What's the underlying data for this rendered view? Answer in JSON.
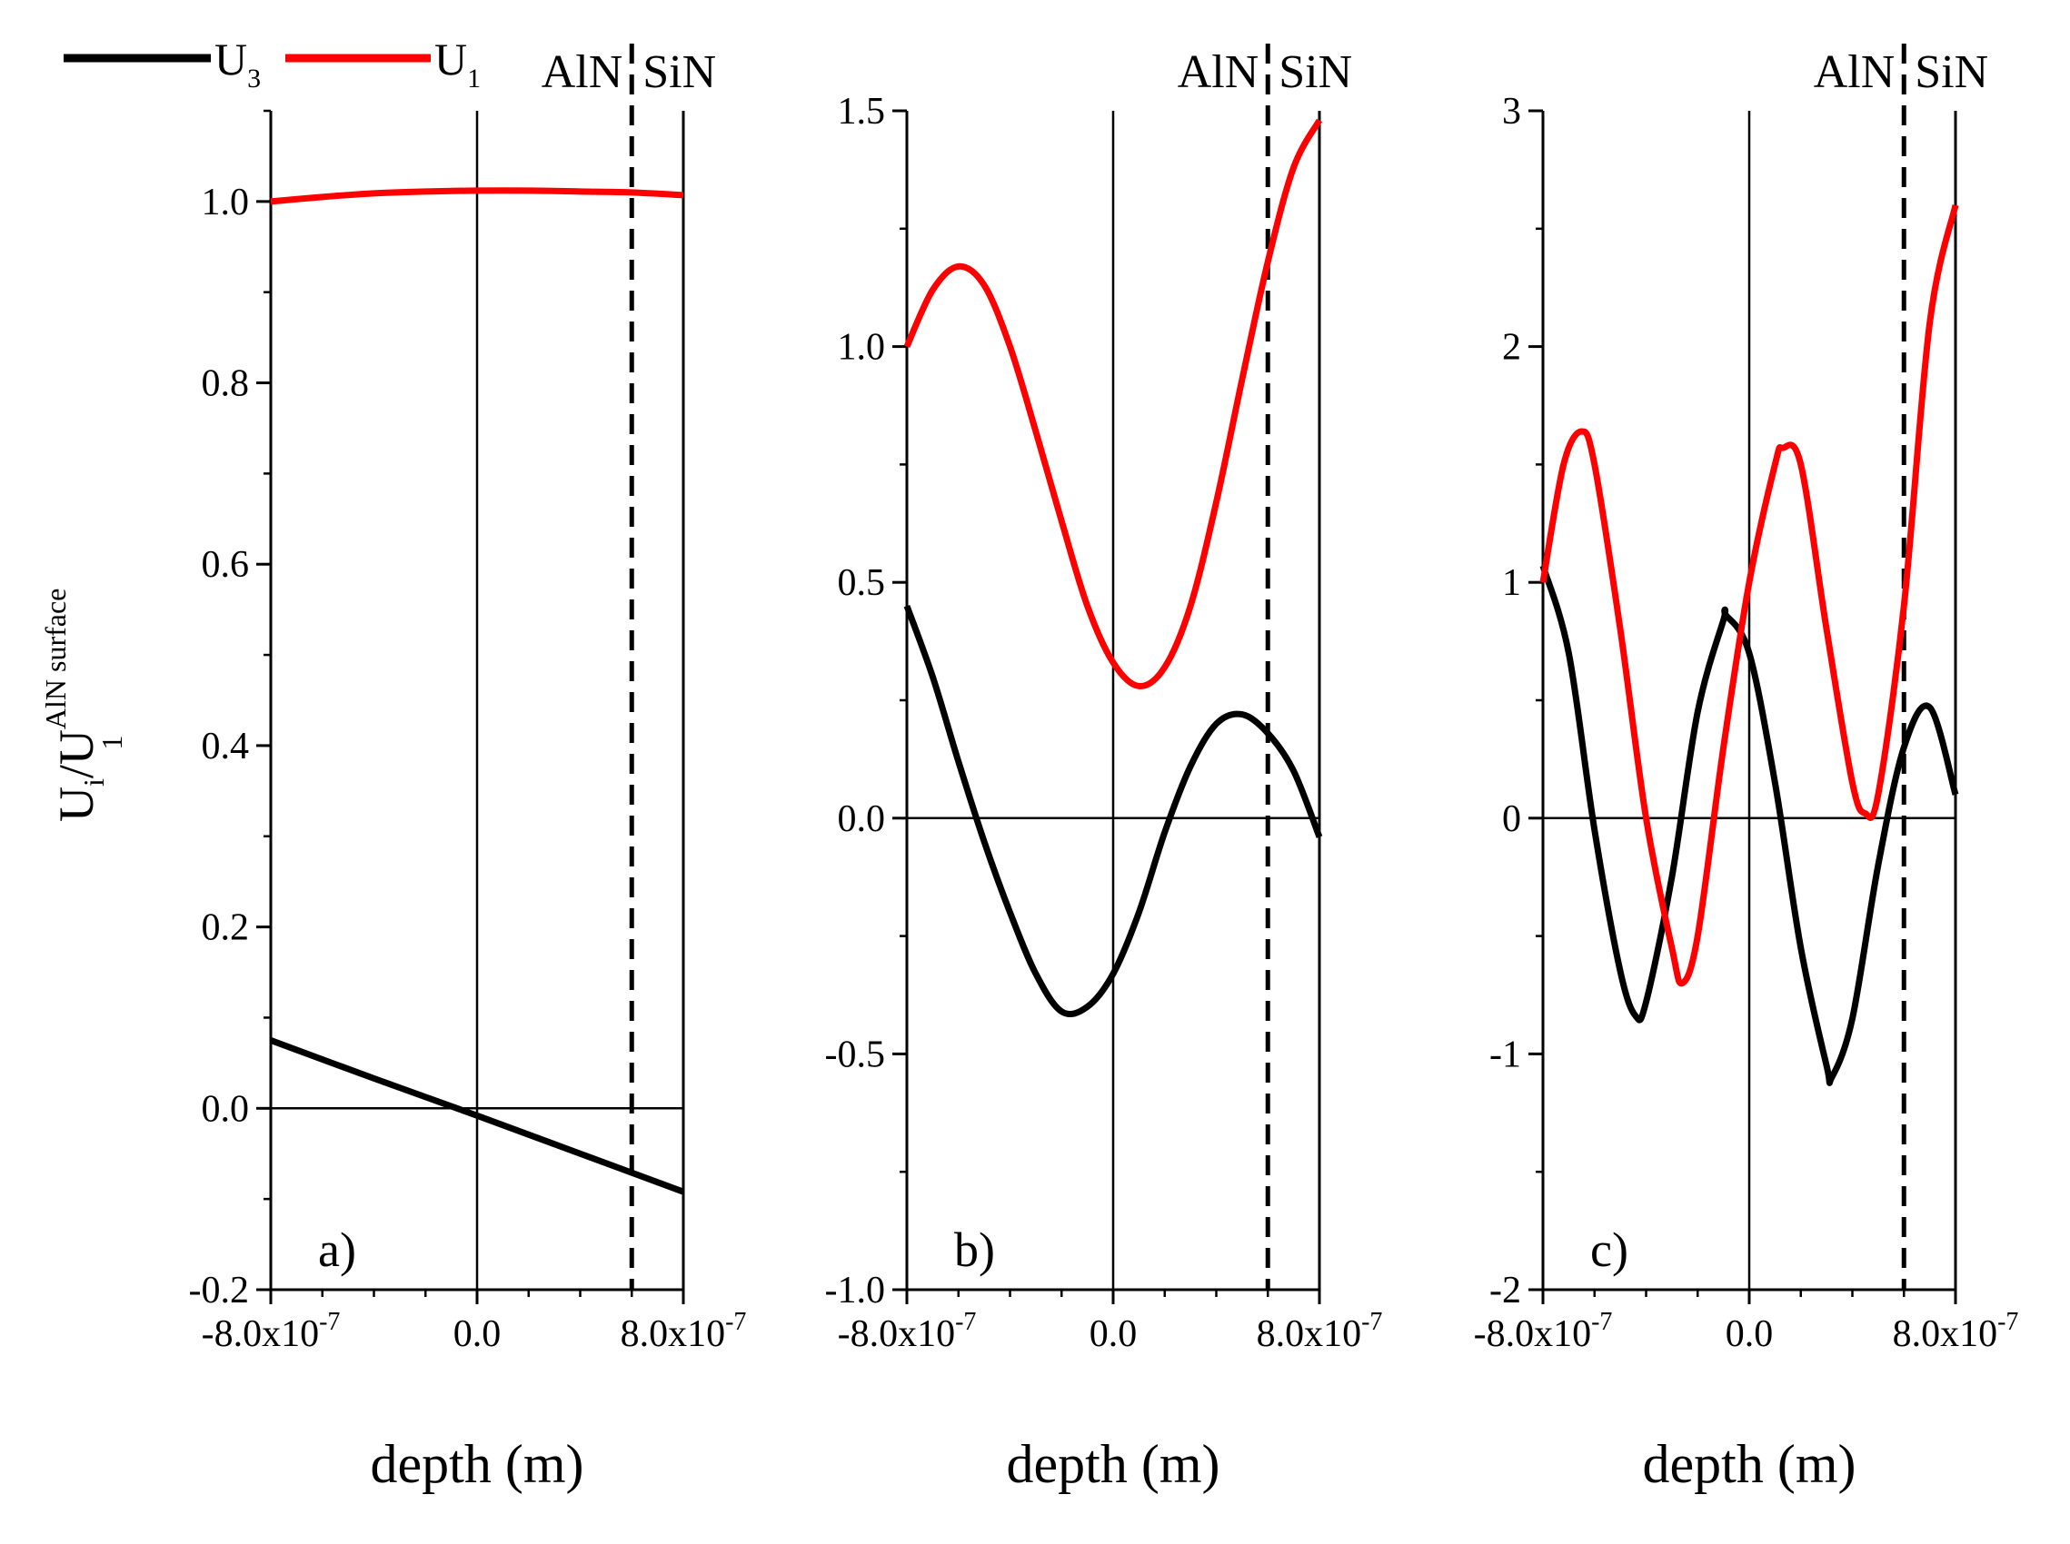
{
  "legend": {
    "u3": {
      "main": "U",
      "sub": "3",
      "color": "#000000"
    },
    "u1": {
      "main": "U",
      "sub": "1",
      "color": "#ff0000"
    }
  },
  "ylabel": {
    "main": "U",
    "sub1": "i",
    "slash": "/U",
    "sup": "AlN surface",
    "sub2": "1"
  },
  "chart_data": [
    {
      "type": "line",
      "panel_label": "a)",
      "xlabel": "depth (m)",
      "xlim": [
        -8e-07,
        8e-07
      ],
      "ylim": [
        -0.2,
        1.1
      ],
      "x_ticks": [
        {
          "v": -8e-07,
          "label": "-8.0x10",
          "exp": "-7"
        },
        {
          "v": 0,
          "label": "0.0",
          "exp": ""
        },
        {
          "v": 8e-07,
          "label": "8.0x10",
          "exp": "-7"
        }
      ],
      "y_ticks": [
        {
          "v": -0.2,
          "label": "-0.2"
        },
        {
          "v": 0.0,
          "label": "0.0"
        },
        {
          "v": 0.2,
          "label": "0.2"
        },
        {
          "v": 0.4,
          "label": "0.4"
        },
        {
          "v": 0.6,
          "label": "0.6"
        },
        {
          "v": 0.8,
          "label": "0.8"
        },
        {
          "v": 1.0,
          "label": "1.0"
        }
      ],
      "y_minor_step": 0.1,
      "interface_x": 6e-07,
      "interface_labels": [
        "AlN",
        "SiN"
      ],
      "series": [
        {
          "name": "U3",
          "color": "#000000",
          "x": [
            -8e-07,
            -4e-07,
            0,
            4e-07,
            8e-07
          ],
          "y": [
            0.075,
            0.033,
            -0.008,
            -0.05,
            -0.092
          ]
        },
        {
          "name": "U1",
          "color": "#ff0000",
          "x": [
            -8e-07,
            -6e-07,
            -4e-07,
            -2e-07,
            0,
            2e-07,
            4e-07,
            6e-07,
            8e-07
          ],
          "y": [
            1.0,
            1.005,
            1.009,
            1.011,
            1.012,
            1.012,
            1.011,
            1.01,
            1.007
          ]
        }
      ]
    },
    {
      "type": "line",
      "panel_label": "b)",
      "xlabel": "depth (m)",
      "xlim": [
        -8e-07,
        8e-07
      ],
      "ylim": [
        -1.0,
        1.5
      ],
      "x_ticks": [
        {
          "v": -8e-07,
          "label": "-8.0x10",
          "exp": "-7"
        },
        {
          "v": 0,
          "label": "0.0",
          "exp": ""
        },
        {
          "v": 8e-07,
          "label": "8.0x10",
          "exp": "-7"
        }
      ],
      "y_ticks": [
        {
          "v": -1.0,
          "label": "-1.0"
        },
        {
          "v": -0.5,
          "label": "-0.5"
        },
        {
          "v": 0.0,
          "label": "0.0"
        },
        {
          "v": 0.5,
          "label": "0.5"
        },
        {
          "v": 1.0,
          "label": "1.0"
        },
        {
          "v": 1.5,
          "label": "1.5"
        }
      ],
      "y_minor_step": 0.25,
      "interface_x": 6e-07,
      "interface_labels": [
        "AlN",
        "SiN"
      ],
      "series": [
        {
          "name": "U3",
          "color": "#000000",
          "x": [
            -8e-07,
            -7e-07,
            -6e-07,
            -5e-07,
            -4e-07,
            -3e-07,
            -2e-07,
            -1e-07,
            0,
            1e-07,
            2e-07,
            3e-07,
            4e-07,
            5e-07,
            6e-07,
            7e-07,
            8e-07
          ],
          "y": [
            0.45,
            0.3,
            0.12,
            -0.05,
            -0.2,
            -0.33,
            -0.41,
            -0.4,
            -0.33,
            -0.2,
            -0.03,
            0.11,
            0.2,
            0.22,
            0.18,
            0.1,
            -0.04
          ]
        },
        {
          "name": "U1",
          "color": "#ff0000",
          "x": [
            -8e-07,
            -7e-07,
            -6e-07,
            -5e-07,
            -4e-07,
            -3e-07,
            -2e-07,
            -1e-07,
            0,
            1e-07,
            2e-07,
            3e-07,
            4e-07,
            5e-07,
            6e-07,
            7e-07,
            8e-07
          ],
          "y": [
            1.0,
            1.12,
            1.17,
            1.13,
            1.0,
            0.82,
            0.63,
            0.45,
            0.33,
            0.28,
            0.32,
            0.45,
            0.67,
            0.93,
            1.18,
            1.38,
            1.48
          ]
        }
      ]
    },
    {
      "type": "line",
      "panel_label": "c)",
      "xlabel": "depth (m)",
      "xlim": [
        -8e-07,
        8e-07
      ],
      "ylim": [
        -2,
        3
      ],
      "x_ticks": [
        {
          "v": -8e-07,
          "label": "-8.0x10",
          "exp": "-7"
        },
        {
          "v": 0,
          "label": "0.0",
          "exp": ""
        },
        {
          "v": 8e-07,
          "label": "8.0x10",
          "exp": "-7"
        }
      ],
      "y_ticks": [
        {
          "v": -2,
          "label": "-2"
        },
        {
          "v": -1,
          "label": "-1"
        },
        {
          "v": 0,
          "label": "0"
        },
        {
          "v": 1,
          "label": "1"
        },
        {
          "v": 2,
          "label": "2"
        },
        {
          "v": 3,
          "label": "3"
        }
      ],
      "y_minor_step": 0.5,
      "interface_x": 6e-07,
      "interface_labels": [
        "AlN",
        "SiN"
      ],
      "series": [
        {
          "name": "U3",
          "color": "#000000",
          "x": [
            -8e-07,
            -7e-07,
            -6e-07,
            -5e-07,
            -4.4e-07,
            -4e-07,
            -3e-07,
            -2e-07,
            -1e-07,
            -9e-08,
            0,
            1e-07,
            2e-07,
            3e-07,
            3.2e-07,
            4e-07,
            5e-07,
            6e-07,
            7e-07,
            8e-07
          ],
          "y": [
            1.07,
            0.7,
            -0.05,
            -0.65,
            -0.84,
            -0.78,
            -0.25,
            0.45,
            0.84,
            0.86,
            0.7,
            0.15,
            -0.55,
            -1.05,
            -1.1,
            -0.85,
            -0.2,
            0.3,
            0.47,
            0.1
          ]
        },
        {
          "name": "U1",
          "color": "#ff0000",
          "x": [
            -8e-07,
            -7.2e-07,
            -6.5e-07,
            -6e-07,
            -5e-07,
            -4e-07,
            -3e-07,
            -2.6e-07,
            -2e-07,
            -1e-07,
            0,
            1e-07,
            1.3e-07,
            2e-07,
            3e-07,
            4e-07,
            4.5e-07,
            5e-07,
            6e-07,
            7e-07,
            8e-07
          ],
          "y": [
            1.0,
            1.5,
            1.64,
            1.5,
            0.8,
            0.0,
            -0.55,
            -0.7,
            -0.5,
            0.3,
            1.0,
            1.5,
            1.57,
            1.5,
            0.8,
            0.15,
            0.02,
            0.1,
            0.9,
            2.1,
            2.6
          ]
        }
      ]
    }
  ]
}
